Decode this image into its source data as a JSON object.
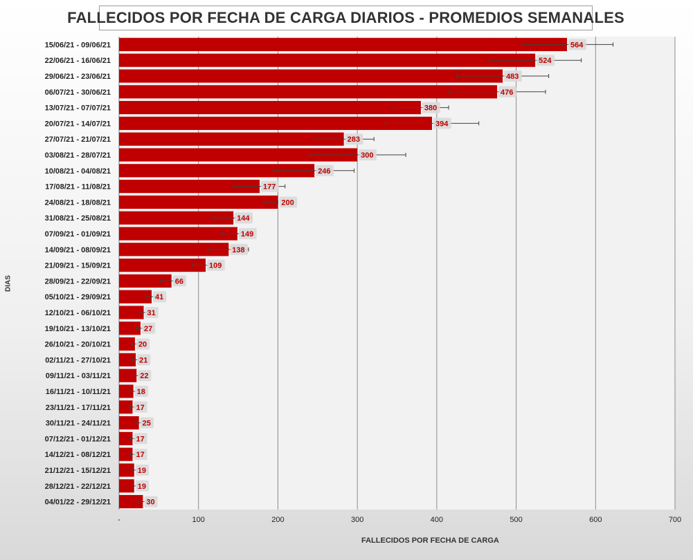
{
  "chart_data": {
    "type": "bar",
    "orientation": "horizontal",
    "title": "FALLECIDOS POR FECHA DE CARGA DIARIOS - PROMEDIOS SEMANALES",
    "xlabel": "FALLECIDOS POR FECHA DE CARGA",
    "ylabel": "DIAS",
    "xlim": [
      0,
      700
    ],
    "x_ticks": [
      "-",
      "100",
      "200",
      "300",
      "400",
      "500",
      "600",
      "700"
    ],
    "x_tick_values": [
      0,
      100,
      200,
      300,
      400,
      500,
      600,
      700
    ],
    "grid": true,
    "bar_color": "#c00000",
    "label_color": "#c00000",
    "categories": [
      "15/06/21 - 09/06/21",
      "22/06/21 - 16/06/21",
      "29/06/21 - 23/06/21",
      "06/07/21 - 30/06/21",
      "13/07/21 - 07/07/21",
      "20/07/21 - 14/07/21",
      "27/07/21 - 21/07/21",
      "03/08/21 - 28/07/21",
      "10/08/21 - 04/08/21",
      "17/08/21 - 11/08/21",
      "24/08/21 - 18/08/21",
      "31/08/21 - 25/08/21",
      "07/09/21 - 01/09/21",
      "14/09/21 - 08/09/21",
      "21/09/21 - 15/09/21",
      "28/09/21 - 22/09/21",
      "05/10/21 - 29/09/21",
      "12/10/21 - 06/10/21",
      "19/10/21 - 13/10/21",
      "26/10/21 - 20/10/21",
      "02/11/21 - 27/10/21",
      "09/11/21 - 03/11/21",
      "16/11/21 - 10/11/21",
      "23/11/21 - 17/11/21",
      "30/11/21 - 24/11/21",
      "07/12/21 - 01/12/21",
      "14/12/21 - 08/12/21",
      "21/12/21 - 15/12/21",
      "28/12/21 - 22/12/21",
      "04/01/22 - 29/12/21"
    ],
    "values": [
      564,
      524,
      483,
      476,
      380,
      394,
      283,
      300,
      246,
      177,
      200,
      144,
      149,
      138,
      109,
      66,
      41,
      31,
      27,
      20,
      21,
      22,
      18,
      17,
      25,
      17,
      17,
      19,
      19,
      30
    ],
    "error_low": [
      507,
      466,
      425,
      415,
      345,
      335,
      245,
      240,
      195,
      145,
      182,
      118,
      130,
      112,
      92,
      52,
      34,
      26,
      22,
      16,
      17,
      18,
      13,
      14,
      21,
      14,
      14,
      16,
      16,
      24
    ],
    "error_high": [
      622,
      582,
      541,
      537,
      415,
      453,
      321,
      361,
      296,
      209,
      200,
      167,
      168,
      163,
      126,
      82,
      49,
      36,
      32,
      24,
      25,
      26,
      23,
      21,
      29,
      21,
      21,
      23,
      23,
      36
    ]
  }
}
